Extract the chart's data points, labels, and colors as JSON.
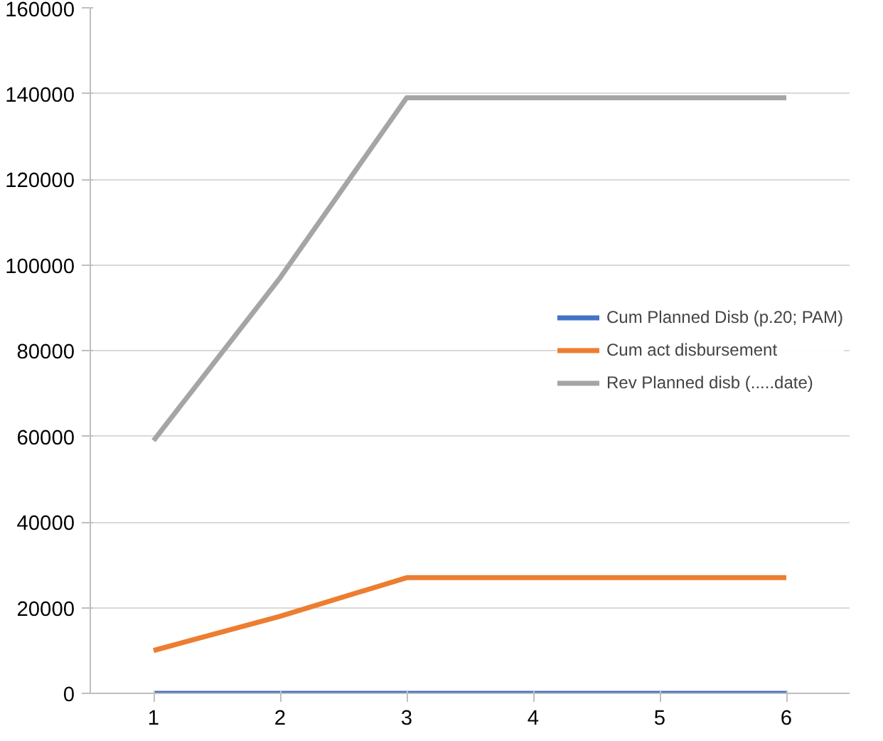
{
  "chart_data": {
    "type": "line",
    "categories": [
      "1",
      "2",
      "3",
      "4",
      "5",
      "6"
    ],
    "series": [
      {
        "name": "Cum Planned Disb (p.20; PAM)",
        "color": "#4472c4",
        "values": [
          0,
          0,
          0,
          0,
          0,
          0
        ]
      },
      {
        "name": "Cum act disbursement",
        "color": "#ed7d31",
        "values": [
          10000,
          18000,
          27000,
          27000,
          27000,
          27000
        ]
      },
      {
        "name": "Rev Planned disb (.....date)",
        "color": "#a5a5a5",
        "values": [
          59000,
          97000,
          139000,
          139000,
          139000,
          139000
        ]
      }
    ],
    "ylim": [
      0,
      160000
    ],
    "yticks": [
      0,
      20000,
      40000,
      60000,
      80000,
      100000,
      120000,
      140000,
      160000
    ],
    "grid": "y",
    "legend": "right",
    "marker": "none",
    "line_style": "solid"
  }
}
